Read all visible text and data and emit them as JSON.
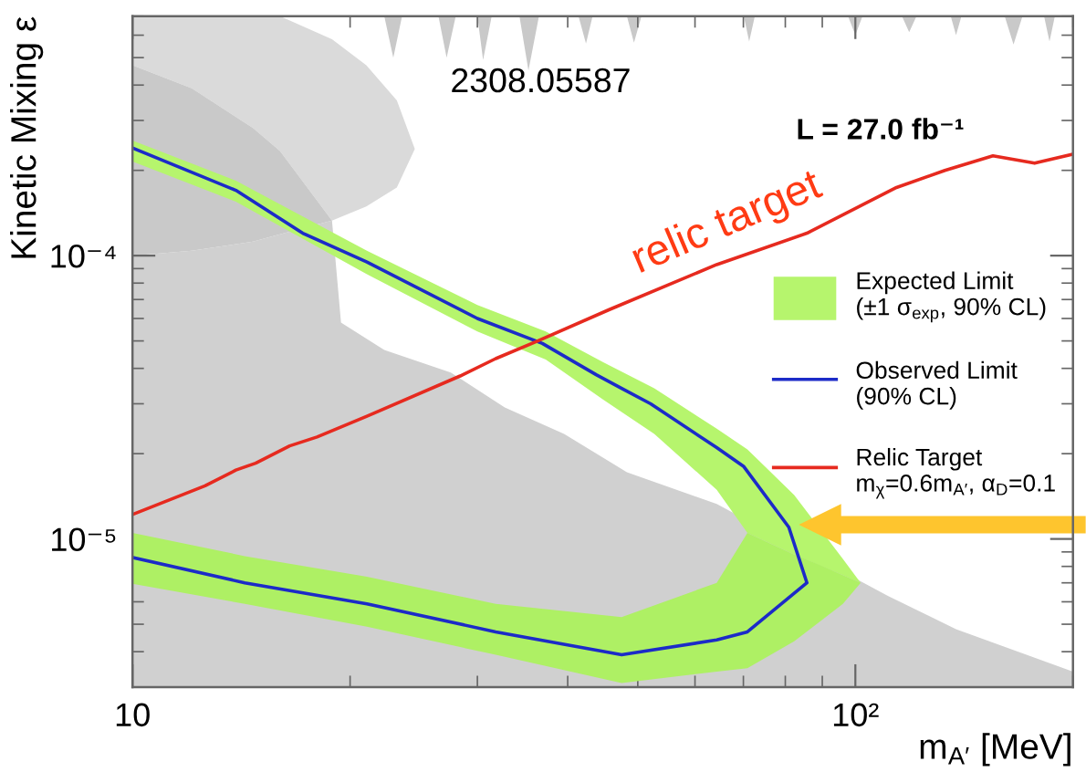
{
  "chart_data": {
    "type": "area",
    "log": "xy",
    "xlim": [
      10,
      200
    ],
    "ylim": [
      3e-06,
      0.0007
    ],
    "xticks": [
      10,
      {
        "value": 100,
        "label": "10²"
      }
    ],
    "yticks": [
      {
        "value": 1e-05,
        "label": "10⁻⁵"
      },
      {
        "value": 0.0001,
        "label": "10⁻⁴"
      }
    ],
    "xlabel": "m$_{A′}$ [MeV]",
    "ylabel": "Kinetic Mixing ε",
    "legend": "right",
    "annotations": [
      "2308.05587",
      "L = 27.0 fb⁻¹",
      "relic target"
    ],
    "series": [
      {
        "color": "#d0d0d0",
        "x": [
          10,
          12.08,
          14.68,
          16.0,
          18.88,
          19.43,
          22.3,
          27.56,
          32.73,
          39.54,
          48.3,
          64.3,
          110.9,
          137.8,
          200
        ],
        "values": [
          0.0001,
          0.000104,
          0.000112,
          0.000119,
          0.000133,
          5.8e-05,
          4.65e-05,
          3.87e-05,
          2.91e-05,
          2.35e-05,
          1.72e-05,
          1.33e-05,
          6.3e-06,
          4.8e-06,
          3.4e-06
        ]
      },
      {
        "color": "#dadada",
        "x": [
          10,
          12.08,
          14.68,
          16.0,
          18.88,
          21.06,
          23.21,
          24.58
        ],
        "values": [
          null,
          null,
          null,
          null,
          null,
          null,
          null,
          null
        ],
        "upper": [
          0.0007,
          0.0007,
          0.0007,
          0.0007,
          0.00058,
          0.00047,
          0.000353,
          0.000238
        ],
        "lower": [
          0.00047,
          0.00039,
          0.000282,
          0.000234,
          0.000133,
          0.000149,
          0.000174,
          0.000238
        ]
      },
      {
        "color": "#c9c9c9",
        "x": [
          10,
          12.08,
          14.68,
          16.0,
          18.88
        ],
        "values": [
          null,
          null,
          null,
          null,
          null
        ],
        "upper": [
          0.00047,
          0.00039,
          0.000282,
          0.000234,
          0.000133
        ],
        "lower": [
          0.0001,
          0.000104,
          0.000112,
          0.000119,
          0.000133
        ]
      },
      {
        "color": "#c9c9c9",
        "x": [
          20.5,
          22.3,
          22.95,
          23.6,
          26.5,
          27.2,
          28.0,
          30.0,
          30.55,
          31.4,
          34.3,
          35.3,
          36.5,
          41.4,
          42.4,
          43.3,
          48.3,
          49.4,
          50.6,
          70.1,
          71.3,
          72.6,
          97.7,
          100,
          102.3,
          116,
          118.7,
          121.5,
          135.5,
          137.8,
          140.2,
          160.9,
          165.5,
          170.3,
          182.4,
          185.6,
          188.8,
          200
        ],
        "values": [
          null,
          null,
          null,
          null,
          null,
          null,
          null,
          null,
          null,
          null,
          null,
          null,
          null,
          null,
          null,
          null,
          null,
          null,
          null,
          null,
          null,
          null,
          null,
          null,
          null,
          null,
          null,
          null,
          null,
          null,
          null,
          null,
          null,
          null,
          null,
          null,
          null,
          null
        ],
        "upper": [
          0.0007,
          0.0007,
          0.0007,
          0.0007,
          0.0007,
          0.0007,
          0.0007,
          0.0007,
          0.0007,
          0.0007,
          0.0007,
          0.0007,
          0.0007,
          0.0007,
          0.0007,
          0.0007,
          0.0007,
          0.0007,
          0.0007,
          0.0007,
          0.0007,
          0.0007,
          0.0007,
          0.0007,
          0.0007,
          0.0007,
          0.0007,
          0.0007,
          0.0007,
          0.0007,
          0.0007,
          0.0007,
          0.0007,
          0.0007,
          0.0007,
          0.0007,
          0.0007,
          0.0007
        ],
        "lower": [
          0.0007,
          0.0007,
          0.0005,
          0.0007,
          0.0007,
          0.0005,
          0.0007,
          0.0007,
          0.00049,
          0.0007,
          0.0007,
          0.00045,
          0.0007,
          0.0007,
          0.00056,
          0.0007,
          0.0007,
          0.000565,
          0.0007,
          0.0007,
          0.00057,
          0.0007,
          0.0007,
          0.0006,
          0.0007,
          0.0007,
          0.000615,
          0.0007,
          0.0007,
          0.0006,
          0.0007,
          0.0007,
          0.000556,
          0.0007,
          0.0007,
          0.00057,
          0.0007,
          0.0007
        ]
      },
      {
        "name": "Expected Limit\n(±1 σ$_{exp}$, 90% CL)",
        "color": "#b6f56d",
        "x": [
          10,
          13.9,
          21.1,
          30,
          37.3,
          44.8,
          52.7,
          64.3,
          70.9,
          82.3,
          96.1,
          101.7
        ],
        "values": [
          null,
          null,
          null,
          null,
          null,
          null,
          null,
          null,
          null,
          null,
          null,
          null
        ],
        "upper": [
          0.000255,
          0.000184,
          0.000104,
          6.7e-05,
          5.4e-05,
          4.2e-05,
          3.4e-05,
          2.45e-05,
          2.07e-05,
          1.43e-05,
          8.5e-06,
          7e-06
        ],
        "lower": [
          0.000215,
          0.000155,
          8.6e-05,
          5.4e-05,
          4.3e-05,
          3.1e-05,
          2.35e-05,
          1.49e-05,
          1.05e-05,
          8.8e-06,
          7.45e-06,
          7e-06
        ]
      },
      {
        "color": "#aef064",
        "x": [
          10,
          14.3,
          21.1,
          31.8,
          47.5,
          64.3,
          70.9,
          82.3,
          89.2,
          96.1,
          101.7
        ],
        "values": [
          null,
          null,
          null,
          null,
          null,
          null,
          null,
          null,
          null,
          null,
          null
        ],
        "upper": [
          1.05e-05,
          8.7e-06,
          7.35e-06,
          5.9e-06,
          5.3e-06,
          7e-06,
          1.05e-05,
          8.8e-06,
          8.1e-06,
          7.45e-06,
          7e-06
        ],
        "lower": [
          6.95e-06,
          5.9e-06,
          4.9e-06,
          3.9e-06,
          3.1e-06,
          3.4e-06,
          3.5e-06,
          4.35e-06,
          5.1e-06,
          5.9e-06,
          7e-06
        ]
      },
      {
        "type": "line",
        "name": "Observed Limit\n(90% CL)",
        "color": "#1c2bc8",
        "x": [
          10,
          13.9,
          17.2,
          21.1,
          30,
          36.9,
          43.8,
          47.5,
          52.1,
          64.3,
          70.1,
          80.9,
          85.7,
          70.9,
          64.3,
          47.5,
          31.8,
          21.1,
          14.3,
          10
        ],
        "values": [
          0.00024,
          0.00017,
          0.00012,
          9.5e-05,
          6e-05,
          4.9e-05,
          3.8e-05,
          3.4e-05,
          3e-05,
          2.1e-05,
          1.8e-05,
          1.1e-05,
          7e-06,
          4.7e-06,
          4.4e-06,
          3.9e-06,
          4.7e-06,
          5.9e-06,
          7e-06,
          8.6e-06
        ]
      },
      {
        "type": "line",
        "name": "Relic Target\nm$_{χ}$=0.6m$_{A′}$, α$_{D}$=0.1",
        "color": "#e62a1f",
        "x": [
          10,
          12.6,
          13.9,
          14.8,
          16.5,
          18,
          21.1,
          28.4,
          31.8,
          36.3,
          45.6,
          64.3,
          85.7,
          114,
          133,
          155,
          177,
          200
        ],
        "values": [
          1.22e-05,
          1.54e-05,
          1.75e-05,
          1.85e-05,
          2.13e-05,
          2.29e-05,
          2.71e-05,
          3.76e-05,
          4.33e-05,
          4.99e-05,
          6.44e-05,
          9.3e-05,
          0.00012,
          0.000174,
          0.0002,
          0.000225,
          0.000212,
          0.000228
        ]
      }
    ]
  }
}
